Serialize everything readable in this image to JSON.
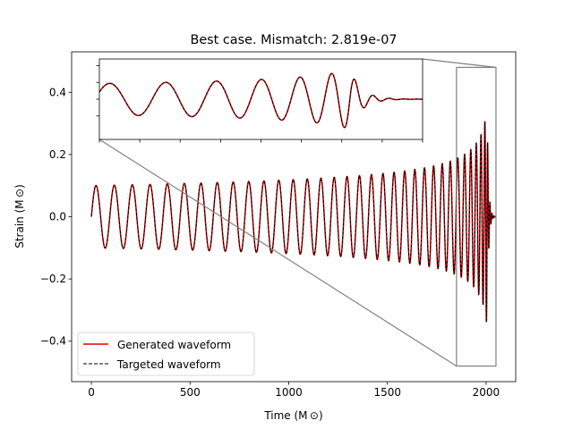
{
  "chart_data": {
    "type": "line",
    "title": "Best case. Mismatch: 2.819e-07",
    "xlabel": "Time (M$_\\odot$)",
    "ylabel": "Strain (M$_\\odot$)",
    "xlabel_text": "Time (M ⊙)",
    "ylabel_text": "Strain (M ⊙)",
    "xlim": [
      -100,
      2150
    ],
    "ylim": [
      -0.53,
      0.53
    ],
    "xticks": [
      0,
      500,
      1000,
      1500,
      2000
    ],
    "xtick_labels": [
      "0",
      "500",
      "1000",
      "1500",
      "2000"
    ],
    "yticks": [
      -0.4,
      -0.2,
      0.0,
      0.2,
      0.4
    ],
    "ytick_labels": [
      "−0.4",
      "−0.2",
      "0.0",
      "0.2",
      "0.4"
    ],
    "grid": false,
    "legend_position": "lower-left",
    "waveform": {
      "t_start": 0,
      "t_merger": 2005,
      "t_end": 2050,
      "initial_amplitude": 0.1,
      "peak_amplitude": 0.36,
      "cycles_before_merger": 33
    },
    "series": [
      {
        "name": "Generated waveform",
        "color": "#e00000",
        "style": "solid"
      },
      {
        "name": "Targeted waveform",
        "color": "#000000",
        "style": "dashed"
      }
    ],
    "inset": {
      "xlim": [
        1850,
        2050
      ],
      "ylim": [
        -0.48,
        0.48
      ],
      "zoom_box_color": "#808080"
    }
  }
}
